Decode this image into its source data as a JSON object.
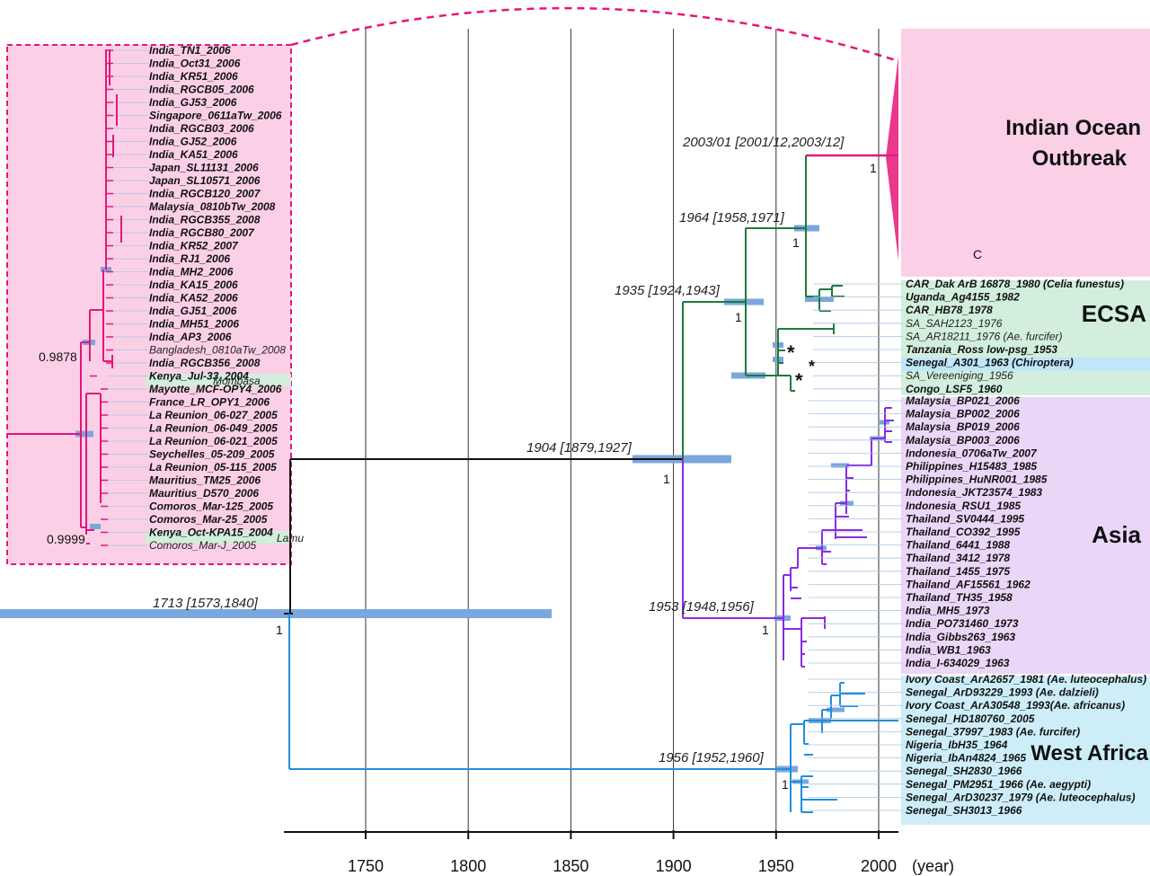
{
  "axis": {
    "ticks": [
      "1750",
      "1800",
      "1850",
      "1900",
      "1950",
      "2000"
    ],
    "unit": "(year)"
  },
  "regions": {
    "indian_ocean_1": "Indian Ocean",
    "indian_ocean_2": "Outbreak",
    "ecsa": "ECSA",
    "asia": "Asia",
    "west_africa": "West Africa",
    "small_c": "C"
  },
  "nodes": {
    "root": "1713 [1573,1840]",
    "n1904": "1904 [1879,1927]",
    "n1935": "1935 [1924,1943]",
    "n1964": "1964 [1958,1971]",
    "n2003": "2003/01 [2001/12,2003/12]",
    "n1953": "1953 [1948,1956]",
    "n1956": "1956 [1952,1960]"
  },
  "supports": {
    "root": "1",
    "n1904": "1",
    "n1935": "1",
    "n1964": "1",
    "n2003": "1",
    "n1953": "1",
    "n1956": "1",
    "inset_top": "0.9878",
    "inset_bottom": "0.9999"
  },
  "marks": {
    "star1": "*",
    "star2": "*",
    "star3": "*"
  },
  "colors": {
    "indian_ocean": "#e6157a",
    "indian_ocean_bg": "#fbd0e6",
    "ecsa": "#1f7a3c",
    "ecsa_bg": "#d2eedc",
    "asia": "#8a2be2",
    "asia_bg": "#ead6f7",
    "west_africa": "#1e8fe0",
    "west_africa_bg": "#cdeef8",
    "root_branch": "#111111",
    "ci_bar": "#7aa7dc"
  },
  "inset_taxa": [
    "India_TN1_2006",
    "India_Oct31_2006",
    "India_KR51_2006",
    "India_RGCB05_2006",
    "India_GJ53_2006",
    "Singapore_0611aTw_2006",
    "India_RGCB03_2006",
    "India_GJ52_2006",
    "India_KA51_2006",
    "Japan_SL11131_2006",
    "Japan_SL10571_2006",
    "India_RGCB120_2007",
    "Malaysia_0810bTw_2008",
    "India_RGCB355_2008",
    "India_RGCB80_2007",
    "India_KR52_2007",
    "India_RJ1_2006",
    "India_MH2_2006",
    "India_KA15_2006",
    "India_KA52_2006",
    "India_GJ51_2006",
    "India_MH51_2006",
    "India_AP3_2006",
    "Bangladesh_0810aTw_2008",
    "India_RGCB356_2008",
    "Kenya_Jul-33_2004",
    "Mayotte_MCF-OPY4_2006",
    "France_LR_OPY1_2006",
    "La Reunion_06-027_2005",
    "La Reunion_06-049_2005",
    "La Reunion_06-021_2005",
    "Seychelles_05-209_2005",
    "La Reunion_05-115_2005",
    "Mauritius_TM25_2006",
    "Mauritius_D570_2006",
    "Comoros_Mar-125_2005",
    "Comoros_Mar-25_2005",
    "Kenya_Oct-KPA15_2004",
    "Comoros_Mar-J_2005"
  ],
  "inset_places": {
    "mombasa": "Mombasa",
    "lamu": "Lamu"
  },
  "ecsa_taxa": [
    "CAR_Dak ArB 16878_1980 (Celia funestus)",
    "Uganda_Ag4155_1982",
    "CAR_HB78_1978",
    "SA_SAH2123_1976",
    "SA_AR18211_1976 (Ae. furcifer)",
    "Tanzania_Ross low-psg_1953",
    "Senegal_A301_1963 (Chiroptera)",
    "SA_Vereeniging_1956",
    "Congo_LSF5_1960"
  ],
  "asia_taxa": [
    "Malaysia_BP021_2006",
    "Malaysia_BP002_2006",
    "Malaysia_BP019_2006",
    "Malaysia_BP003_2006",
    "Indonesia_0706aTw_2007",
    "Philippines_H15483_1985",
    "Philippines_HuNR001_1985",
    "Indonesia_JKT23574_1983",
    "Indonesia_RSU1_1985",
    "Thailand_SV0444_1995",
    "Thailand_CO392_1995",
    "Thailand_6441_1988",
    "Thailand_3412_1978",
    "Thailand_1455_1975",
    "Thailand_AF15561_1962",
    "Thailand_TH35_1958",
    "India_MH5_1973",
    "India_PO731460_1973",
    "India_Gibbs263_1963",
    "India_WB1_1963",
    "India_I-634029_1963"
  ],
  "wa_taxa": [
    "Ivory Coast_ArA2657_1981 (Ae. luteocephalus)",
    "Senegal_ArD93229_1993 (Ae. dalzieli)",
    "Ivory Coast_ArA30548_1993(Ae. africanus)",
    "Senegal_HD180760_2005",
    "Senegal_37997_1983 (Ae. furcifer)",
    "Nigeria_IbH35_1964",
    "Nigeria_IbAn4824_1965",
    "Senegal_SH2830_1966",
    "Senegal_PM2951_1966 (Ae. aegypti)",
    "Senegal_ArD30237_1979 (Ae. luteocephalus)",
    "Senegal_SH3013_1966"
  ]
}
